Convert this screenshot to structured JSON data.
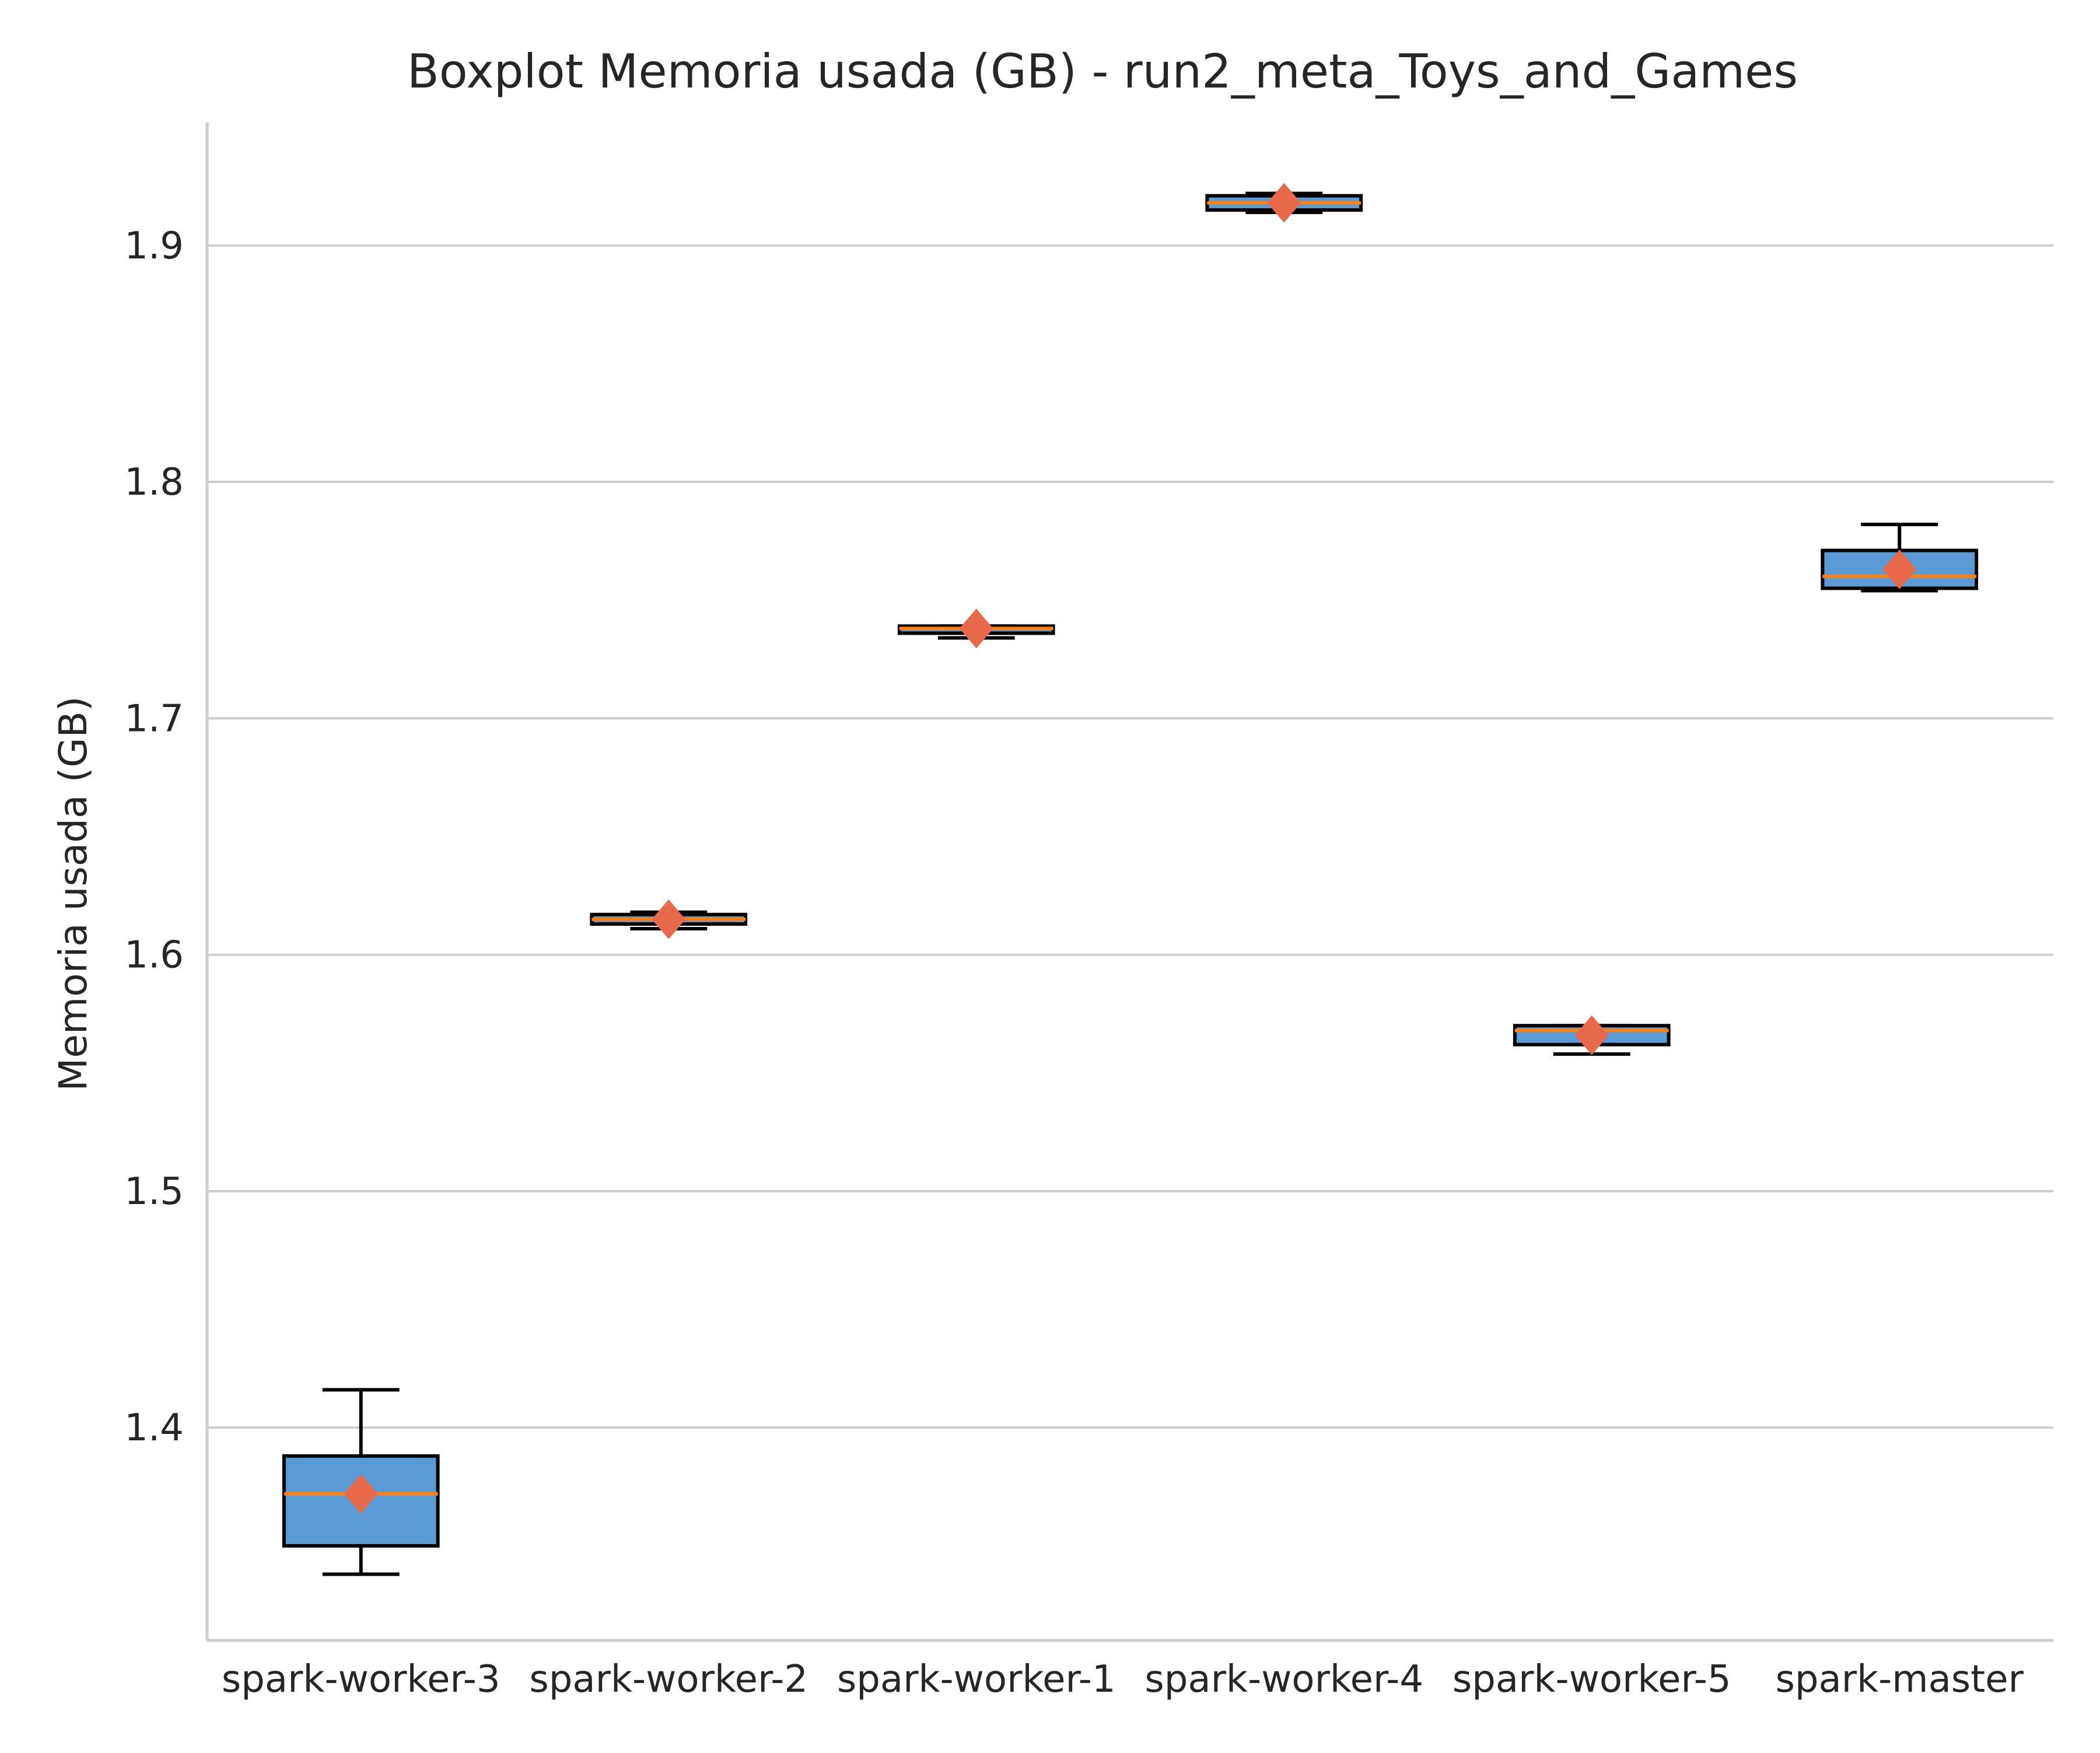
{
  "chart_data": {
    "type": "box",
    "title": "Boxplot Memoria usada (GB) - run2_meta_Toys_and_Games",
    "xlabel": "",
    "ylabel": "Memoria usada (GB)",
    "ylim": [
      1.31,
      1.952
    ],
    "yticks": [
      1.4,
      1.5,
      1.6,
      1.7,
      1.8,
      1.9
    ],
    "ytick_labels": [
      "1.4",
      "1.5",
      "1.6",
      "1.7",
      "1.8",
      "1.9"
    ],
    "grid": "horizontal",
    "categories": [
      "spark-worker-3",
      "spark-worker-2",
      "spark-worker-1",
      "spark-worker-4",
      "spark-worker-5",
      "spark-master"
    ],
    "boxes": [
      {
        "category": "spark-worker-3",
        "whisker_low": 1.338,
        "q1": 1.35,
        "median": 1.372,
        "q3": 1.388,
        "whisker_high": 1.416,
        "mean": 1.372
      },
      {
        "category": "spark-worker-2",
        "whisker_low": 1.611,
        "q1": 1.613,
        "median": 1.615,
        "q3": 1.617,
        "whisker_high": 1.618,
        "mean": 1.615
      },
      {
        "category": "spark-worker-1",
        "whisker_low": 1.734,
        "q1": 1.736,
        "median": 1.738,
        "q3": 1.739,
        "whisker_high": 1.739,
        "mean": 1.738
      },
      {
        "category": "spark-worker-4",
        "whisker_low": 1.914,
        "q1": 1.915,
        "median": 1.918,
        "q3": 1.921,
        "whisker_high": 1.922,
        "mean": 1.918
      },
      {
        "category": "spark-worker-5",
        "whisker_low": 1.558,
        "q1": 1.562,
        "median": 1.568,
        "q3": 1.57,
        "whisker_high": 1.57,
        "mean": 1.566
      },
      {
        "category": "spark-master",
        "whisker_low": 1.754,
        "q1": 1.755,
        "median": 1.76,
        "q3": 1.771,
        "whisker_high": 1.782,
        "mean": 1.763
      }
    ],
    "colors": {
      "box_fill": "#5b9bd5",
      "box_edge": "#000000",
      "median": "#ff7f0e",
      "mean_marker": "#e8694a",
      "grid": "#cccccc",
      "spine": "#cccccc"
    },
    "mean_marker": "diamond"
  }
}
